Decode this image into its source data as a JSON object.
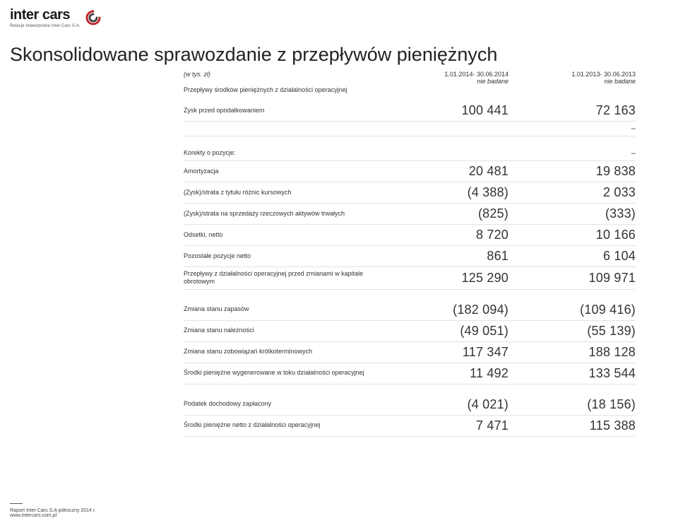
{
  "logo": {
    "brand": "inter cars",
    "subline": "Relacje Inwestorskie Inter Cars S.A."
  },
  "title": "Skonsolidowane sprawozdanie z przepływów pieniężnych",
  "header": {
    "unit": "(w tys. zł)",
    "subline": "Przepływy środków pieniężnych z działalności operacyjnej",
    "col1": {
      "period": "1.01.2014- 30.06.2014",
      "note": "nie badane"
    },
    "col2": {
      "period": "1.01.2013- 30.06.2013",
      "note": "nie badane"
    }
  },
  "sections": [
    {
      "rows": [
        {
          "label": "Zysk przed opodatkowaniem",
          "v1": "100 441",
          "v2": "72 163"
        }
      ],
      "trailing_dashes": true
    },
    {
      "rows": [
        {
          "label": "Korekty o pozycje:",
          "v1": "",
          "v2": "–",
          "dash_row": true
        },
        {
          "label": "Amortyzacja",
          "v1": "20 481",
          "v2": "19 838"
        },
        {
          "label": "(Zysk)/strata z tytułu różnic kursowych",
          "v1": "(4 388)",
          "v2": "2 033"
        },
        {
          "label": "(Zysk)/strata na sprzedaży rzeczowych aktywów trwałych",
          "v1": "(825)",
          "v2": "(333)"
        },
        {
          "label": "Odsetki, netto",
          "v1": "8 720",
          "v2": "10 166"
        },
        {
          "label": "Pozostałe pozycje netto",
          "v1": "861",
          "v2": "6 104"
        },
        {
          "label": "Przepływy z działalności operacyjnej przed zmianami w kapitale obrotowym",
          "v1": "125 290",
          "v2": "109 971"
        }
      ]
    },
    {
      "rows": [
        {
          "label": "Zmiana stanu zapasów",
          "v1": "(182 094)",
          "v2": "(109 416)"
        },
        {
          "label": "Zmiana stanu należności",
          "v1": "(49 051)",
          "v2": "(55 139)"
        },
        {
          "label": "Zmiana stanu zobowiązań krótkoterminowych",
          "v1": "117 347",
          "v2": "188 128"
        },
        {
          "label": "Środki pieniężne wygenerowane w toku działalności operacyjnej",
          "v1": "11 492",
          "v2": "133 544"
        }
      ]
    },
    {
      "rows": [
        {
          "label": "Podatek dochodowy zapłacony",
          "v1": "(4 021)",
          "v2": "(18 156)"
        },
        {
          "label": "Środki pieniężne netto z działalności operacyjnej",
          "v1": "7 471",
          "v2": "115 388"
        }
      ]
    }
  ],
  "footer": {
    "line1": "Raport Inter Cars S.A półroczny 2014 r.",
    "line2": "www.intercars.com.pl"
  },
  "colors": {
    "accent": "#c1272d",
    "text": "#333333",
    "rule": "#e3e3e3"
  }
}
